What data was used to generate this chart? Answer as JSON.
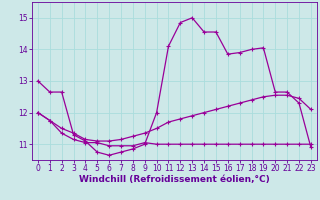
{
  "xlabel": "Windchill (Refroidissement éolien,°C)",
  "background_color": "#cde8e8",
  "grid_color": "#aadddd",
  "line_color": "#990099",
  "xlim": [
    -0.5,
    23.5
  ],
  "ylim": [
    10.5,
    15.5
  ],
  "yticks": [
    11,
    12,
    13,
    14,
    15
  ],
  "xticks": [
    0,
    1,
    2,
    3,
    4,
    5,
    6,
    7,
    8,
    9,
    10,
    11,
    12,
    13,
    14,
    15,
    16,
    17,
    18,
    19,
    20,
    21,
    22,
    23
  ],
  "series": {
    "line1_x": [
      0,
      1,
      2,
      3,
      4,
      5,
      6,
      7,
      8,
      9,
      10,
      11,
      12,
      13,
      14,
      15,
      16,
      17,
      18,
      19,
      20,
      21,
      22,
      23
    ],
    "line1_y": [
      13.0,
      12.65,
      12.65,
      11.3,
      11.1,
      10.75,
      10.65,
      10.75,
      10.85,
      11.0,
      12.0,
      14.1,
      14.85,
      15.0,
      14.55,
      14.55,
      13.85,
      13.9,
      14.0,
      14.05,
      12.65,
      12.65,
      12.3,
      10.9
    ],
    "line2_x": [
      0,
      1,
      2,
      3,
      4,
      5,
      6,
      7,
      8,
      9,
      10,
      11,
      12,
      13,
      14,
      15,
      16,
      17,
      18,
      19,
      20,
      21,
      22,
      23
    ],
    "line2_y": [
      12.0,
      11.75,
      11.5,
      11.35,
      11.15,
      11.1,
      11.1,
      11.15,
      11.25,
      11.35,
      11.5,
      11.7,
      11.8,
      11.9,
      12.0,
      12.1,
      12.2,
      12.3,
      12.4,
      12.5,
      12.55,
      12.55,
      12.45,
      12.1
    ],
    "line3_x": [
      0,
      1,
      2,
      3,
      4,
      5,
      6,
      7,
      8,
      9,
      10,
      11,
      12,
      13,
      14,
      15,
      16,
      17,
      18,
      19,
      20,
      21,
      22,
      23
    ],
    "line3_y": [
      12.0,
      11.75,
      11.35,
      11.15,
      11.05,
      11.05,
      10.95,
      10.95,
      10.95,
      11.05,
      11.0,
      11.0,
      11.0,
      11.0,
      11.0,
      11.0,
      11.0,
      11.0,
      11.0,
      11.0,
      11.0,
      11.0,
      11.0,
      11.0
    ]
  },
  "marker": "+",
  "markersize": 3,
  "markeredgewidth": 0.8,
  "linewidth": 0.9,
  "font_color": "#660099",
  "tick_label_fontsize": 5.5,
  "xlabel_fontsize": 6.5
}
